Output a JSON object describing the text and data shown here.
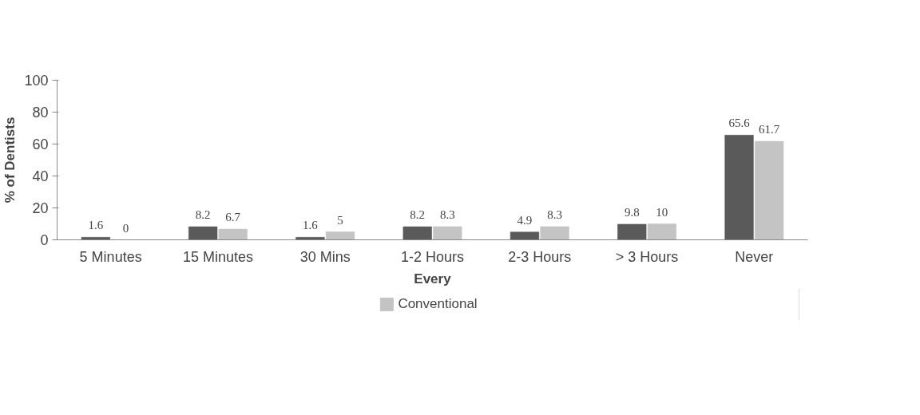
{
  "chart_data": {
    "type": "bar",
    "xlabel": "Every",
    "ylabel": "% of Dentists",
    "categories": [
      "5 Minutes",
      "15 Minutes",
      "30 Mins",
      "1-2 Hours",
      "2-3 Hours",
      "> 3 Hours",
      "Never"
    ],
    "series": [
      {
        "color": "#5a5a5a",
        "values": [
          1.6,
          8.2,
          1.6,
          8.2,
          4.9,
          9.8,
          65.6
        ]
      },
      {
        "name": "Conventional",
        "color": "#c4c4c4",
        "values": [
          0,
          6.7,
          5,
          8.3,
          8.3,
          10,
          61.7
        ]
      }
    ],
    "ylim": [
      0,
      100
    ],
    "yticks": [
      0,
      20,
      40,
      60,
      80,
      100
    ],
    "grid": false,
    "data_labels": true,
    "legend": "bottom"
  }
}
